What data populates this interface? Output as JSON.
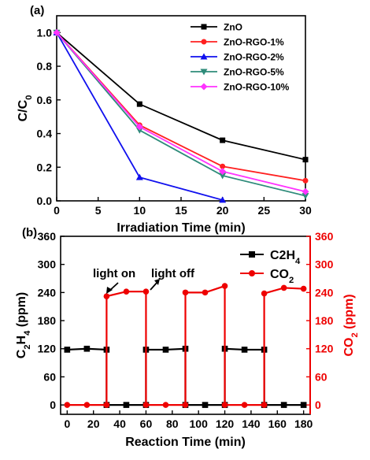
{
  "chart_data": [
    {
      "type": "line",
      "panel_label": "(a)",
      "xlabel": "Irradiation Time (min)",
      "ylabel": "C/C0",
      "xlim": [
        0,
        30
      ],
      "ylim": [
        0,
        1.1
      ],
      "xticks": [
        "0",
        "5",
        "10",
        "15",
        "20",
        "25",
        "30"
      ],
      "yticks": [
        "0.0",
        "0.2",
        "0.4",
        "0.6",
        "0.8",
        "1.0"
      ],
      "legend_position": "top-right",
      "series": [
        {
          "name": "ZnO",
          "color": "#000000",
          "marker": "square",
          "x": [
            0,
            10,
            20,
            30
          ],
          "y": [
            1.0,
            0.575,
            0.36,
            0.245
          ]
        },
        {
          "name": "ZnO-RGO-1%",
          "color": "#ff2020",
          "marker": "circle",
          "x": [
            0,
            10,
            20,
            30
          ],
          "y": [
            1.0,
            0.45,
            0.205,
            0.12
          ]
        },
        {
          "name": "ZnO-RGO-2%",
          "color": "#1010ee",
          "marker": "triangle-up",
          "x": [
            0,
            10,
            20
          ],
          "y": [
            1.0,
            0.14,
            0.005
          ]
        },
        {
          "name": "ZnO-RGO-5%",
          "color": "#2e8b7a",
          "marker": "triangle-down",
          "x": [
            0,
            10,
            20,
            30
          ],
          "y": [
            1.0,
            0.42,
            0.15,
            0.03
          ]
        },
        {
          "name": "ZnO-RGO-10%",
          "color": "#ff33ff",
          "marker": "diamond",
          "x": [
            0,
            10,
            20,
            30
          ],
          "y": [
            1.0,
            0.44,
            0.175,
            0.055
          ]
        }
      ]
    },
    {
      "type": "line",
      "panel_label": "(b)",
      "xlabel": "Reaction Time (min)",
      "ylabel_left": "C2H4 (ppm)",
      "ylabel_right": "CO2 (ppm)",
      "xlim": [
        -5,
        185
      ],
      "ylim": [
        -20,
        360
      ],
      "xticks": [
        "0",
        "20",
        "40",
        "60",
        "80",
        "100",
        "120",
        "140",
        "160",
        "180"
      ],
      "yticks": [
        "0",
        "60",
        "120",
        "180",
        "240",
        "300",
        "360"
      ],
      "legend_position": "top-right",
      "annotations": [
        "light on",
        "light off"
      ],
      "series": [
        {
          "name": "C2H4",
          "axis": "left",
          "color": "#000000",
          "marker": "square",
          "x": [
            0,
            15,
            30,
            30,
            45,
            60,
            60,
            75,
            90,
            90,
            105,
            120,
            120,
            135,
            150,
            150,
            165,
            180
          ],
          "y": [
            118,
            120,
            118,
            0,
            0,
            0,
            118,
            118,
            120,
            0,
            0,
            0,
            120,
            118,
            118,
            0,
            0,
            0
          ]
        },
        {
          "name": "CO2",
          "axis": "right",
          "color": "#ee0000",
          "marker": "circle",
          "x": [
            0,
            15,
            30,
            30,
            45,
            60,
            60,
            75,
            90,
            90,
            105,
            120,
            120,
            135,
            150,
            150,
            165,
            180
          ],
          "y": [
            0,
            0,
            0,
            232,
            242,
            242,
            0,
            0,
            0,
            240,
            240,
            254,
            0,
            0,
            0,
            238,
            250,
            248
          ]
        }
      ]
    }
  ]
}
